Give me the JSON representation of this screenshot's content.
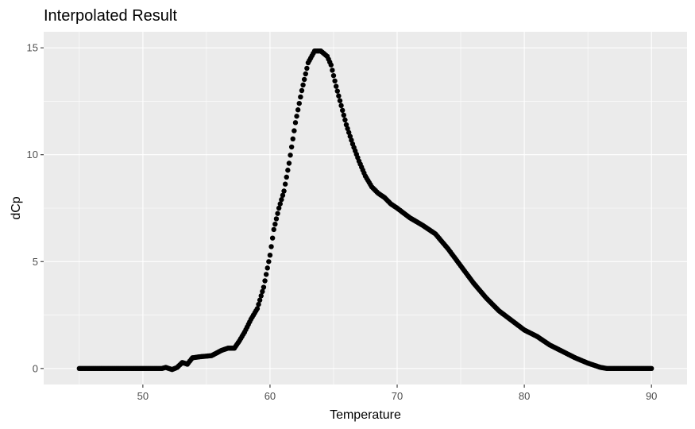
{
  "chart_data": {
    "type": "scatter",
    "title": "Interpolated Result",
    "xlabel": "Temperature",
    "ylabel": "dCp",
    "xlim": [
      42.2,
      92.8
    ],
    "ylim": [
      -0.75,
      15.75
    ],
    "x_ticks": [
      50,
      60,
      70,
      80,
      90
    ],
    "y_ticks": [
      0,
      5,
      10,
      15
    ],
    "x_tick_labels": [
      "50",
      "60",
      "70",
      "80",
      "90"
    ],
    "y_tick_labels": [
      "0",
      "5",
      "10",
      "15"
    ],
    "grid": true,
    "panel_color": "#ebebeb",
    "point_color": "#000000",
    "series": [
      {
        "x_range": [
          45,
          90
        ],
        "x_step": 0.1,
        "key_points": [
          [
            45,
            0
          ],
          [
            51.5,
            0
          ],
          [
            51.8,
            0.05
          ],
          [
            52.3,
            -0.05
          ],
          [
            52.7,
            0.05
          ],
          [
            53.1,
            0.28
          ],
          [
            53.5,
            0.2
          ],
          [
            53.9,
            0.5
          ],
          [
            54.5,
            0.55
          ],
          [
            55.4,
            0.6
          ],
          [
            56.2,
            0.85
          ],
          [
            56.7,
            0.95
          ],
          [
            57.2,
            0.95
          ],
          [
            57.6,
            1.3
          ],
          [
            58.0,
            1.7
          ],
          [
            58.5,
            2.3
          ],
          [
            59.0,
            2.8
          ],
          [
            59.5,
            3.8
          ],
          [
            60.0,
            5.3
          ],
          [
            60.3,
            6.5
          ],
          [
            60.7,
            7.5
          ],
          [
            61.1,
            8.3
          ],
          [
            61.5,
            9.6
          ],
          [
            62.0,
            11.5
          ],
          [
            62.5,
            13.0
          ],
          [
            63.0,
            14.3
          ],
          [
            63.5,
            14.85
          ],
          [
            64.0,
            14.85
          ],
          [
            64.5,
            14.6
          ],
          [
            64.8,
            14.2
          ],
          [
            65.2,
            13.2
          ],
          [
            65.6,
            12.3
          ],
          [
            66.0,
            11.4
          ],
          [
            66.5,
            10.5
          ],
          [
            67.0,
            9.7
          ],
          [
            67.5,
            9.0
          ],
          [
            68.0,
            8.5
          ],
          [
            68.5,
            8.2
          ],
          [
            69.0,
            8.0
          ],
          [
            69.5,
            7.7
          ],
          [
            70.0,
            7.5
          ],
          [
            71.0,
            7.05
          ],
          [
            72.0,
            6.7
          ],
          [
            73.0,
            6.3
          ],
          [
            74.0,
            5.6
          ],
          [
            75.0,
            4.8
          ],
          [
            76.0,
            4.0
          ],
          [
            77.0,
            3.3
          ],
          [
            78.0,
            2.7
          ],
          [
            79.0,
            2.25
          ],
          [
            80.0,
            1.8
          ],
          [
            81.0,
            1.5
          ],
          [
            82.0,
            1.1
          ],
          [
            83.0,
            0.8
          ],
          [
            84.0,
            0.5
          ],
          [
            85.0,
            0.25
          ],
          [
            86.0,
            0.05
          ],
          [
            86.5,
            0
          ],
          [
            90,
            0
          ]
        ]
      }
    ]
  }
}
